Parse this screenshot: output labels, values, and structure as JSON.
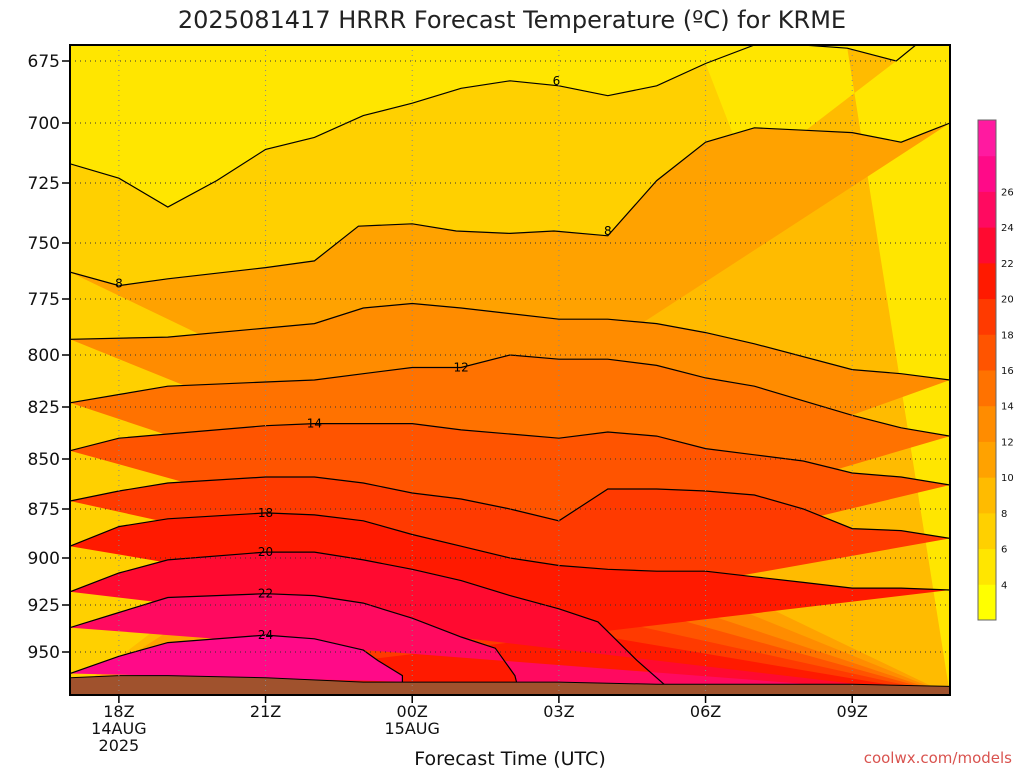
{
  "chart_data": {
    "type": "contour",
    "title": "2025081417 HRRR Forecast Temperature (ºC) for KRME",
    "xlabel": "Forecast Time (UTC)",
    "credit": "coolwx.com/models",
    "y_axis": {
      "scale": "pressure (hPa)",
      "range": [
        670,
        970
      ],
      "ticks": [
        675,
        700,
        725,
        750,
        775,
        800,
        825,
        850,
        875,
        900,
        925,
        950
      ]
    },
    "x_axis": {
      "range": [
        17,
        35
      ],
      "ticks": [
        {
          "h": 18,
          "lines": [
            "18Z",
            "14AUG",
            "2025"
          ]
        },
        {
          "h": 21,
          "lines": [
            "21Z"
          ]
        },
        {
          "h": 24,
          "lines": [
            "00Z",
            "15AUG"
          ]
        },
        {
          "h": 27,
          "lines": [
            "03Z"
          ]
        },
        {
          "h": 30,
          "lines": [
            "06Z"
          ]
        },
        {
          "h": 33,
          "lines": [
            "09Z"
          ]
        }
      ]
    },
    "colorbar": {
      "levels": [
        2,
        4,
        6,
        8,
        10,
        12,
        14,
        16,
        18,
        20,
        22,
        24,
        26,
        28
      ],
      "labels": [
        "4",
        "6",
        "8",
        "10",
        "12",
        "14",
        "16",
        "18",
        "20",
        "22",
        "24",
        "26"
      ],
      "colors": [
        "#ffff00",
        "#ffe600",
        "#ffd000",
        "#ffbb00",
        "#ffa200",
        "#ff8c00",
        "#ff7200",
        "#ff5400",
        "#ff3a00",
        "#ff1a00",
        "#ff0a30",
        "#ff0a60",
        "#ff0a88",
        "#ff1aa0"
      ]
    },
    "surface": {
      "color": "#a0522d",
      "pressure": [
        [
          17,
          962
        ],
        [
          18,
          961
        ],
        [
          19,
          961
        ],
        [
          21,
          962
        ],
        [
          23,
          964
        ],
        [
          25,
          964
        ],
        [
          27,
          964
        ],
        [
          29,
          965
        ],
        [
          31,
          965
        ],
        [
          33,
          965
        ],
        [
          35,
          966
        ]
      ]
    },
    "contours": [
      {
        "level": 4,
        "fill": "#ffe600",
        "points": [
          [
            17,
            670
          ],
          [
            17,
            717
          ],
          [
            18,
            723
          ],
          [
            19,
            735
          ],
          [
            20,
            724
          ],
          [
            21,
            711
          ],
          [
            22,
            706
          ],
          [
            23,
            697
          ],
          [
            24,
            692
          ],
          [
            25,
            686
          ],
          [
            26,
            683
          ],
          [
            27,
            685
          ],
          [
            28,
            689
          ],
          [
            29,
            685
          ],
          [
            30,
            676
          ],
          [
            31,
            670
          ],
          [
            17,
            670
          ]
        ]
      },
      {
        "level": 6,
        "fill": "#ffd000",
        "points": [
          [
            17,
            670
          ],
          [
            35,
            670
          ],
          [
            35,
            670
          ],
          [
            34.3,
            670
          ],
          [
            33.9,
            675
          ],
          [
            32.9,
            671
          ],
          [
            32,
            670
          ],
          [
            17,
            670
          ]
        ]
      },
      {
        "level": 8,
        "fill": "#ffbb00",
        "points": [
          [
            17,
            670
          ],
          [
            35,
            670
          ],
          [
            35,
            700
          ],
          [
            34,
            708
          ],
          [
            33,
            704
          ],
          [
            32,
            703
          ],
          [
            31,
            702
          ],
          [
            30,
            708
          ],
          [
            29,
            724
          ],
          [
            28,
            747
          ],
          [
            26.9,
            745
          ],
          [
            26,
            746
          ],
          [
            24.9,
            745
          ],
          [
            24,
            742
          ],
          [
            22.9,
            743
          ],
          [
            22,
            758
          ],
          [
            21,
            761
          ],
          [
            19,
            766
          ],
          [
            18,
            769
          ],
          [
            17,
            763
          ],
          [
            17,
            670
          ]
        ]
      },
      {
        "level": 10,
        "fill": "#ffa200",
        "points": [
          [
            17,
            670
          ],
          [
            35,
            670
          ],
          [
            35,
            812
          ],
          [
            34,
            809
          ],
          [
            33,
            807
          ],
          [
            31,
            795
          ],
          [
            30,
            790
          ],
          [
            29,
            786
          ],
          [
            28,
            784
          ],
          [
            27,
            784
          ],
          [
            25,
            779
          ],
          [
            24,
            777
          ],
          [
            23,
            779
          ],
          [
            22,
            786
          ],
          [
            21,
            788
          ],
          [
            19,
            792
          ],
          [
            17,
            793
          ],
          [
            17,
            670
          ]
        ]
      },
      {
        "level": 12,
        "fill": "#ff8c00",
        "points": [
          [
            17,
            670
          ],
          [
            35,
            670
          ],
          [
            35,
            839
          ],
          [
            34,
            835
          ],
          [
            33,
            829
          ],
          [
            32,
            822
          ],
          [
            31,
            815
          ],
          [
            30,
            811
          ],
          [
            29,
            805
          ],
          [
            28,
            802
          ],
          [
            27,
            802
          ],
          [
            26,
            800
          ],
          [
            25,
            806
          ],
          [
            24,
            806
          ],
          [
            23,
            809
          ],
          [
            22,
            812
          ],
          [
            21,
            813
          ],
          [
            19,
            815
          ],
          [
            18,
            819
          ],
          [
            17,
            823
          ],
          [
            17,
            670
          ]
        ]
      },
      {
        "level": 14,
        "fill": "#ff7200",
        "points": [
          [
            17,
            670
          ],
          [
            35,
            670
          ],
          [
            35,
            863
          ],
          [
            34,
            859
          ],
          [
            33,
            857
          ],
          [
            32,
            851
          ],
          [
            31,
            848
          ],
          [
            30,
            845
          ],
          [
            29,
            839
          ],
          [
            28,
            837
          ],
          [
            27,
            840
          ],
          [
            26,
            838
          ],
          [
            25,
            836
          ],
          [
            24,
            833
          ],
          [
            23,
            833
          ],
          [
            22,
            833
          ],
          [
            21,
            834
          ],
          [
            19,
            838
          ],
          [
            18,
            840
          ],
          [
            17,
            846
          ],
          [
            17,
            670
          ]
        ]
      },
      {
        "level": 16,
        "fill": "#ff5400",
        "points": [
          [
            17,
            670
          ],
          [
            35,
            670
          ],
          [
            35,
            890
          ],
          [
            34,
            886
          ],
          [
            33,
            885
          ],
          [
            32,
            875
          ],
          [
            31,
            868
          ],
          [
            30,
            866
          ],
          [
            29,
            865
          ],
          [
            28,
            865
          ],
          [
            27,
            881
          ],
          [
            26,
            875
          ],
          [
            25,
            870
          ],
          [
            24,
            867
          ],
          [
            23,
            862
          ],
          [
            22,
            859
          ],
          [
            21,
            859
          ],
          [
            19,
            862
          ],
          [
            18,
            866
          ],
          [
            17,
            871
          ],
          [
            17,
            670
          ]
        ]
      },
      {
        "level": 18,
        "fill": "#ff3a00",
        "points": [
          [
            17,
            670
          ],
          [
            35,
            670
          ],
          [
            35,
            917
          ],
          [
            34,
            916
          ],
          [
            33,
            916
          ],
          [
            32,
            913
          ],
          [
            31,
            910
          ],
          [
            30,
            907
          ],
          [
            29,
            907
          ],
          [
            28,
            906
          ],
          [
            27,
            904
          ],
          [
            26,
            900
          ],
          [
            25,
            894
          ],
          [
            24,
            888
          ],
          [
            23,
            881
          ],
          [
            22,
            878
          ],
          [
            21,
            877
          ],
          [
            19,
            880
          ],
          [
            18,
            884
          ],
          [
            17,
            894
          ],
          [
            17,
            670
          ]
        ]
      },
      {
        "level": 20,
        "fill": "#ff1a00",
        "points": [
          [
            17,
            670
          ],
          [
            35,
            670
          ],
          [
            35,
            970
          ],
          [
            29.4,
            970
          ],
          [
            29,
            962
          ],
          [
            28.6,
            954
          ],
          [
            27.8,
            934
          ],
          [
            27,
            927
          ],
          [
            26,
            920
          ],
          [
            25,
            912
          ],
          [
            24,
            906
          ],
          [
            23,
            901
          ],
          [
            22,
            897
          ],
          [
            21,
            897
          ],
          [
            19,
            901
          ],
          [
            18,
            908
          ],
          [
            17,
            918
          ],
          [
            17,
            670
          ]
        ]
      },
      {
        "level": 22,
        "fill": "#ff0a30",
        "points": [
          [
            17,
            670
          ],
          [
            35,
            670
          ],
          [
            35,
            970
          ],
          [
            26.2,
            970
          ],
          [
            26.1,
            961
          ],
          [
            25.7,
            948
          ],
          [
            25,
            942
          ],
          [
            24,
            932
          ],
          [
            23,
            924
          ],
          [
            22,
            920
          ],
          [
            21,
            919
          ],
          [
            19,
            921
          ],
          [
            18,
            929
          ],
          [
            17,
            937
          ],
          [
            17,
            670
          ]
        ]
      },
      {
        "level": 24,
        "fill": "#ff0a60",
        "points": [
          [
            17,
            670
          ],
          [
            35,
            670
          ],
          [
            35,
            970
          ],
          [
            23.8,
            970
          ],
          [
            23.8,
            961
          ],
          [
            23.3,
            954
          ],
          [
            23,
            949
          ],
          [
            22,
            943
          ],
          [
            21,
            941
          ],
          [
            19,
            945
          ],
          [
            18,
            952
          ],
          [
            17,
            960
          ],
          [
            17,
            670
          ]
        ]
      }
    ],
    "labels": [
      {
        "text": "6",
        "h": 26.95,
        "p": 683
      },
      {
        "text": "8",
        "h": 28.0,
        "p": 745
      },
      {
        "text": "8",
        "h": 18.0,
        "p": 768
      },
      {
        "text": "12",
        "h": 25.0,
        "p": 806
      },
      {
        "text": "14",
        "h": 22.0,
        "p": 833
      },
      {
        "text": "18",
        "h": 21.0,
        "p": 877
      },
      {
        "text": "20",
        "h": 21.0,
        "p": 897
      },
      {
        "text": "22",
        "h": 21.0,
        "p": 919
      },
      {
        "text": "24",
        "h": 21.0,
        "p": 941
      }
    ]
  }
}
